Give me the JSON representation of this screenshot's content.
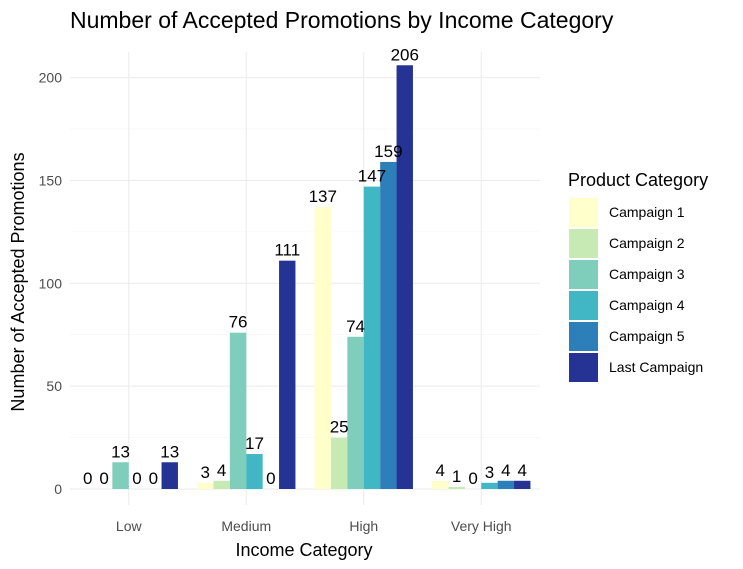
{
  "chart_data": {
    "type": "bar",
    "title": "Number of Accepted Promotions by Income Category",
    "xlabel": "Income Category",
    "ylabel": "Number of Accepted Promotions",
    "categories": [
      "Low",
      "Medium",
      "High",
      "Very High"
    ],
    "ylim": [
      0,
      210
    ],
    "yticks": [
      0,
      50,
      100,
      150,
      200
    ],
    "grid": true,
    "legend": {
      "title": "Product Category",
      "placement": "right"
    },
    "series": [
      {
        "name": "Campaign 1",
        "color": "#ffffcc",
        "values": [
          0,
          3,
          137,
          4
        ]
      },
      {
        "name": "Campaign 2",
        "color": "#c7e9b4",
        "values": [
          0,
          4,
          25,
          1
        ]
      },
      {
        "name": "Campaign 3",
        "color": "#7fcdbb",
        "values": [
          13,
          76,
          74,
          0
        ]
      },
      {
        "name": "Campaign 4",
        "color": "#41b6c4",
        "values": [
          0,
          17,
          147,
          3
        ]
      },
      {
        "name": "Campaign 5",
        "color": "#2c7fb8",
        "values": [
          0,
          0,
          159,
          4
        ]
      },
      {
        "name": "Last Campaign",
        "color": "#253494",
        "values": [
          13,
          111,
          206,
          4
        ]
      }
    ]
  }
}
